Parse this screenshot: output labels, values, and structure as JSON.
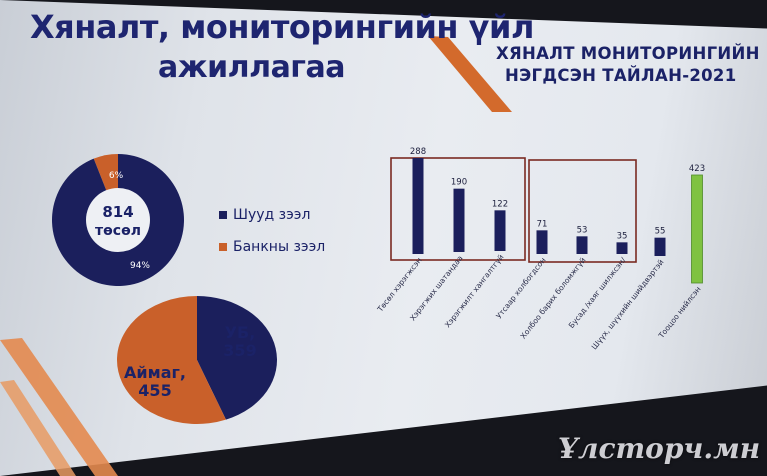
{
  "slide": {
    "title_line1": "Хяналт, мониторингийн үйл",
    "title_line2": "ажиллагаа",
    "report_line1": "ХЯНАЛТ МОНИТОРИНГИЙН",
    "report_line2": "НЭГДСЭН ТАЙЛАН-2021"
  },
  "watermark": "Ұлсторч.мн",
  "chart_data": [
    {
      "type": "pie",
      "style": "donut",
      "center_value": "814",
      "center_unit": "төсөл",
      "legend_placement": "right",
      "slices": [
        {
          "name": "Шууд зээл",
          "value": 94,
          "label": "94%",
          "color": "#1b1f5c"
        },
        {
          "name": "Банкны зээл",
          "value": 6,
          "label": "6%",
          "color": "#c9602a"
        }
      ]
    },
    {
      "type": "pie",
      "slices": [
        {
          "name": "УБ",
          "value": 359,
          "color": "#1b1f5c"
        },
        {
          "name": "Аймаг",
          "value": 455,
          "color": "#c9602a"
        }
      ]
    },
    {
      "type": "bar",
      "categories": [
        "Төсөл хэрэгжсэн",
        "Хэрэгжих шатандаа",
        "Хэрэгжилт хангалтгүй",
        "Утсаар холбогдсон",
        "Холбоо барих боломжгүй",
        "Бусад /хаяг шилжсэн/",
        "Шүүх, шүүхийн шийдвэртэй",
        "Тооцоо нийлсэн"
      ],
      "values": [
        288,
        190,
        122,
        71,
        53,
        35,
        55,
        423
      ],
      "colors": [
        "#1b1f5c",
        "#1b1f5c",
        "#1b1f5c",
        "#1b1f5c",
        "#1b1f5c",
        "#1b1f5c",
        "#1b1f5c",
        "#7fc241"
      ],
      "ylim": [
        0,
        450
      ],
      "group_boxes": [
        [
          0,
          2
        ],
        [
          3,
          5
        ]
      ],
      "grid": false
    }
  ]
}
